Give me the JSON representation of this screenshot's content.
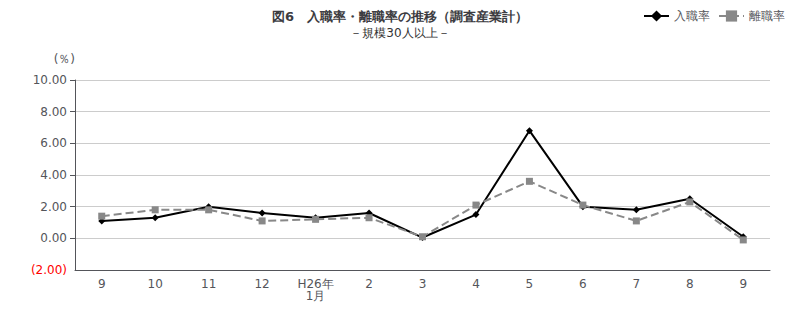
{
  "chart_data": {
    "type": "line",
    "title": "図6　入職率・離職率の推移（調査産業計）",
    "subtitle": "－規模30人以上－",
    "ylabel": "(％)",
    "categories": [
      "9",
      "10",
      "11",
      "12",
      "H26年\n1月",
      "2",
      "3",
      "4",
      "5",
      "6",
      "7",
      "8",
      "9"
    ],
    "series": [
      {
        "name": "入職率",
        "color": "#000000",
        "marker": "diamond",
        "line_style": "solid",
        "values": [
          1.1,
          1.3,
          2.0,
          1.6,
          1.3,
          1.6,
          0.05,
          1.5,
          6.8,
          2.0,
          1.8,
          2.5,
          0.1
        ]
      },
      {
        "name": "離職率",
        "color": "#888888",
        "marker": "square",
        "line_style": "dashed",
        "values": [
          1.4,
          1.8,
          1.8,
          1.1,
          1.2,
          1.3,
          0.1,
          2.1,
          3.6,
          2.1,
          1.1,
          2.3,
          -0.1
        ]
      }
    ],
    "ylim": [
      -2.0,
      10.0
    ],
    "yticks": [
      {
        "value": 0,
        "label": "0.00"
      },
      {
        "value": 2,
        "label": "2.00"
      },
      {
        "value": 4,
        "label": "4.00"
      },
      {
        "value": 6,
        "label": "6.00"
      },
      {
        "value": 8,
        "label": "8.00"
      },
      {
        "value": 10,
        "label": "10.00"
      }
    ],
    "annotations": [
      {
        "text": "(2.00)",
        "y": -2.0,
        "color": "red"
      }
    ],
    "grid": true,
    "legend": "upper right"
  }
}
